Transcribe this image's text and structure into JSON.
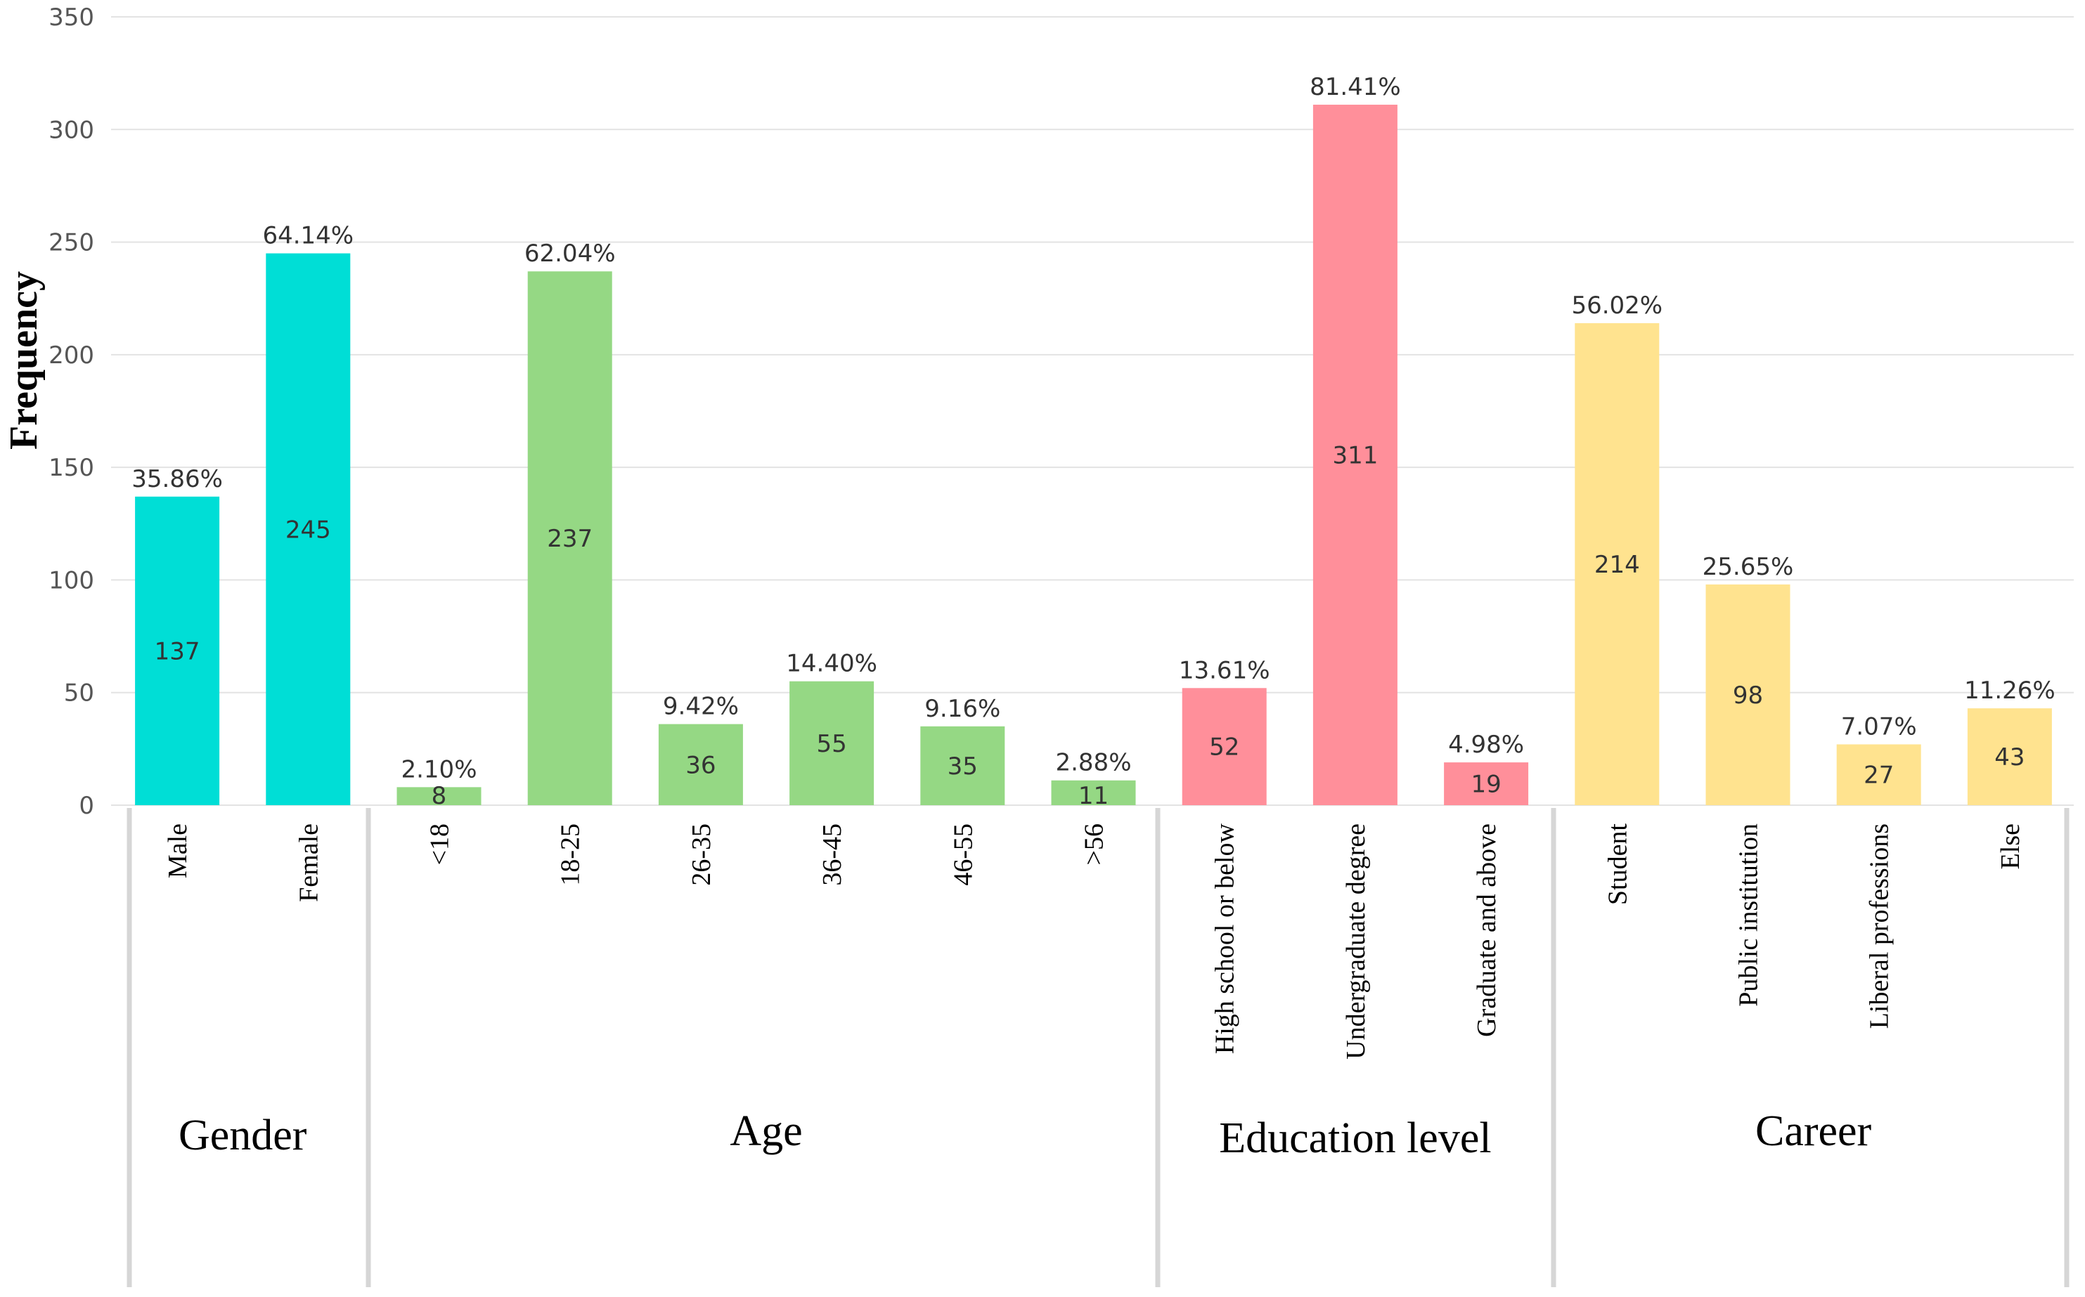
{
  "chart_data": {
    "type": "bar",
    "ylabel": "Frequency",
    "ylim": [
      0,
      350
    ],
    "yticks": [
      "0",
      "50",
      "100",
      "150",
      "200",
      "250",
      "300",
      "350"
    ],
    "grid": true,
    "groups": [
      {
        "name": "Gender",
        "color": "#00DED6",
        "bars": [
          {
            "category": "Male",
            "value": 137,
            "value_label": "137",
            "pct_label": "35.86%"
          },
          {
            "category": "Female",
            "value": 245,
            "value_label": "245",
            "pct_label": "64.14%"
          }
        ]
      },
      {
        "name": "Age",
        "color": "#95D884",
        "bars": [
          {
            "category": "<18",
            "value": 8,
            "value_label": "8",
            "pct_label": "2.10%"
          },
          {
            "category": "18-25",
            "value": 237,
            "value_label": "237",
            "pct_label": "62.04%"
          },
          {
            "category": "26-35",
            "value": 36,
            "value_label": "36",
            "pct_label": "9.42%"
          },
          {
            "category": "36-45",
            "value": 55,
            "value_label": "55",
            "pct_label": "14.40%"
          },
          {
            "category": "46-55",
            "value": 35,
            "value_label": "35",
            "pct_label": "9.16%"
          },
          {
            "category": ">56",
            "value": 11,
            "value_label": "11",
            "pct_label": "2.88%"
          }
        ]
      },
      {
        "name": "Education level",
        "color": "#FF8F9A",
        "bars": [
          {
            "category": "High school or below",
            "value": 52,
            "value_label": "52",
            "pct_label": "13.61%"
          },
          {
            "category": "Undergraduate degree",
            "value": 311,
            "value_label": "311",
            "pct_label": "81.41%"
          },
          {
            "category": "Graduate and above",
            "value": 19,
            "value_label": "19",
            "pct_label": "4.98%"
          }
        ]
      },
      {
        "name": "Career",
        "color": "#FFE38F",
        "bars": [
          {
            "category": "Student",
            "value": 214,
            "value_label": "214",
            "pct_label": "56.02%"
          },
          {
            "category": "Public institution",
            "value": 98,
            "value_label": "98",
            "pct_label": "25.65%"
          },
          {
            "category": "Liberal professions",
            "value": 27,
            "value_label": "27",
            "pct_label": "7.07%"
          },
          {
            "category": "Else",
            "value": 43,
            "value_label": "43",
            "pct_label": "11.26%"
          }
        ]
      }
    ]
  }
}
